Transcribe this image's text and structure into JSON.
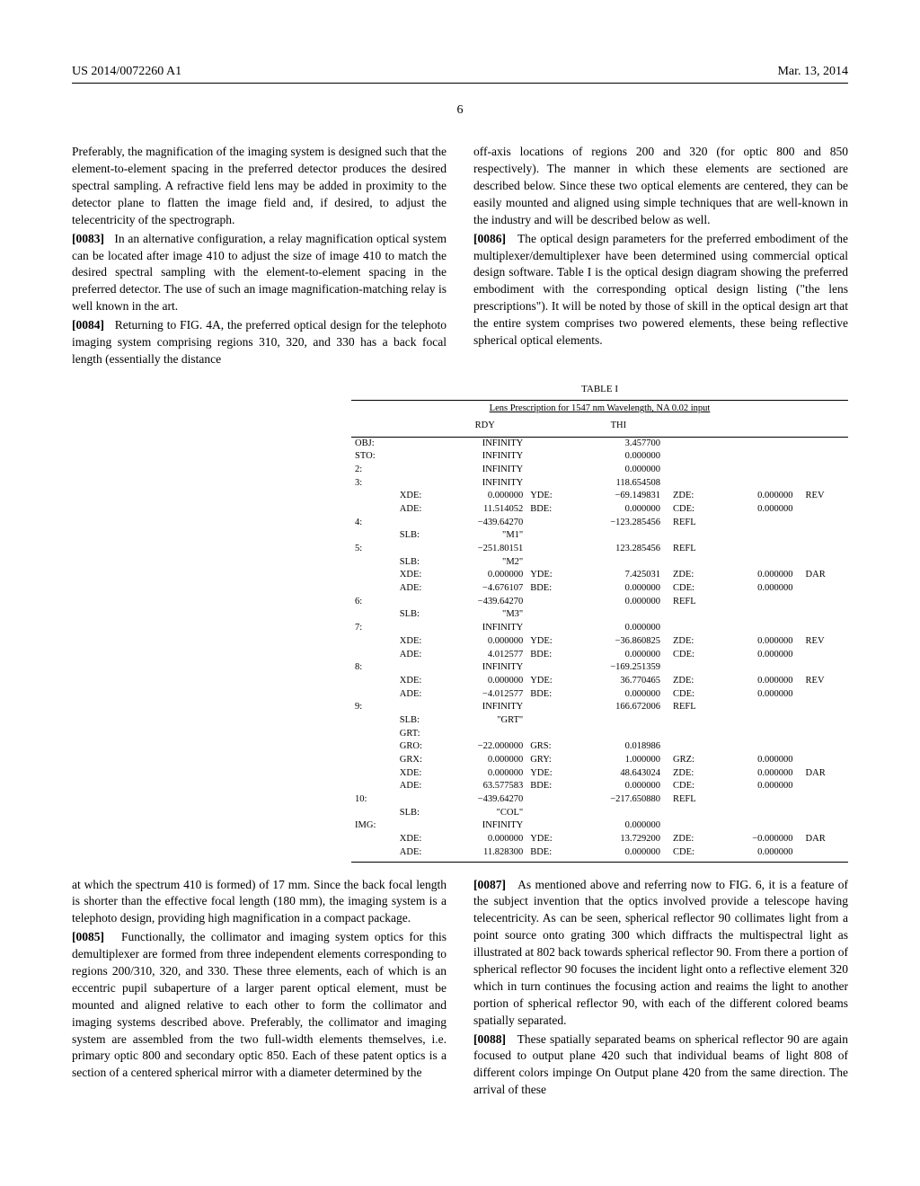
{
  "header": {
    "left": "US 2014/0072260 A1",
    "right": "Mar. 13, 2014"
  },
  "page_number": "6",
  "paragraphs": {
    "p_pre": "Preferably, the magnification of the imaging system is designed such that the element-to-element spacing in the preferred detector produces the desired spectral sampling. A refractive field lens may be added in proximity to the detector plane to flatten the image field and, if desired, to adjust the telecentricity of the spectrograph.",
    "p0083_num": "[0083]",
    "p0083": "In an alternative configuration, a relay magnification optical system can be located after image 410 to adjust the size of image 410 to match the desired spectral sampling with the element-to-element spacing in the preferred detector. The use of such an image magnification-matching relay is well known in the art.",
    "p0084_num": "[0084]",
    "p0084": "Returning to FIG. 4A, the preferred optical design for the telephoto imaging system comprising regions 310, 320, and 330 has a back focal length (essentially the distance",
    "p_col2_top": "off-axis locations of regions 200 and 320 (for optic 800 and 850 respectively). The manner in which these elements are sectioned are described below. Since these two optical elements are centered, they can be easily mounted and aligned using simple techniques that are well-known in the industry and will be described below as well.",
    "p0086_num": "[0086]",
    "p0086": "The optical design parameters for the preferred embodiment of the multiplexer/demultiplexer have been determined using commercial optical design software. Table I is the optical design diagram showing the preferred embodiment with the corresponding optical design listing (\"the lens prescriptions\"). It will be noted by those of skill in the optical design art that the entire system comprises two powered elements, these being reflective spherical optical elements.",
    "p_after_table1": "at which the spectrum 410 is formed) of 17 mm. Since the back focal length is shorter than the effective focal length (180 mm), the imaging system is a telephoto design, providing high magnification in a compact package.",
    "p0085_num": "[0085]",
    "p0085": "Functionally, the collimator and imaging system optics for this demultiplexer are formed from three independent elements corresponding to regions 200/310, 320, and 330. These three elements, each of which is an eccentric pupil subaperture of a larger parent optical element, must be mounted and aligned relative to each other to form the collimator and imaging systems described above. Preferably, the collimator and imaging system are assembled from the two full-width elements themselves, i.e. primary optic 800 and secondary optic 850. Each of these patent optics is a section of a centered spherical mirror with a diameter determined by the",
    "p0087_num": "[0087]",
    "p0087": "As mentioned above and referring now to FIG. 6, it is a feature of the subject invention that the optics involved provide a telescope having telecentricity. As can be seen, spherical reflector 90 collimates light from a point source onto grating 300 which diffracts the multispectral light as illustrated at 802 back towards spherical reflector 90. From there a portion of spherical reflector 90 focuses the incident light onto a reflective element 320 which in turn continues the focusing action and reaims the light to another portion of spherical reflector 90, with each of the different colored beams spatially separated.",
    "p0088_num": "[0088]",
    "p0088": "These spatially separated beams on spherical reflector 90 are again focused to output plane 420 such that individual beams of light 808 of different colors impinge On Output plane 420 from the same direction. The arrival of these"
  },
  "table": {
    "title": "TABLE I",
    "subtitle": "Lens Prescription for 1547 nm Wavelength, NA 0.02 input",
    "col_headers": {
      "rdy": "RDY",
      "thi": "THI"
    },
    "rows": [
      [
        "OBJ:",
        "",
        "INFINITY",
        "",
        "3.457700",
        "",
        "",
        "",
        ""
      ],
      [
        "STO:",
        "",
        "INFINITY",
        "",
        "0.000000",
        "",
        "",
        "",
        ""
      ],
      [
        "2:",
        "",
        "INFINITY",
        "",
        "0.000000",
        "",
        "",
        "",
        ""
      ],
      [
        "3:",
        "",
        "INFINITY",
        "",
        "118.654508",
        "",
        "",
        "",
        ""
      ],
      [
        "",
        "XDE:",
        "0.000000",
        "YDE:",
        "−69.149831",
        "ZDE:",
        "0.000000",
        "REV",
        ""
      ],
      [
        "",
        "ADE:",
        "11.514052",
        "BDE:",
        "0.000000",
        "CDE:",
        "0.000000",
        "",
        ""
      ],
      [
        "4:",
        "",
        "−439.64270",
        "",
        "−123.285456",
        "REFL",
        "",
        "",
        ""
      ],
      [
        "",
        "SLB:",
        "\"M1\"",
        "",
        "",
        "",
        "",
        "",
        ""
      ],
      [
        "5:",
        "",
        "−251.80151",
        "",
        "123.285456",
        "REFL",
        "",
        "",
        ""
      ],
      [
        "",
        "SLB:",
        "\"M2\"",
        "",
        "",
        "",
        "",
        "",
        ""
      ],
      [
        "",
        "XDE:",
        "0.000000",
        "YDE:",
        "7.425031",
        "ZDE:",
        "0.000000",
        "DAR",
        ""
      ],
      [
        "",
        "ADE:",
        "−4.676107",
        "BDE:",
        "0.000000",
        "CDE:",
        "0.000000",
        "",
        ""
      ],
      [
        "6:",
        "",
        "−439.64270",
        "",
        "0.000000",
        "REFL",
        "",
        "",
        ""
      ],
      [
        "",
        "SLB:",
        "\"M3\"",
        "",
        "",
        "",
        "",
        "",
        ""
      ],
      [
        "7:",
        "",
        "INFINITY",
        "",
        "0.000000",
        "",
        "",
        "",
        ""
      ],
      [
        "",
        "XDE:",
        "0.000000",
        "YDE:",
        "−36.860825",
        "ZDE:",
        "0.000000",
        "REV",
        ""
      ],
      [
        "",
        "ADE:",
        "4.012577",
        "BDE:",
        "0.000000",
        "CDE:",
        "0.000000",
        "",
        ""
      ],
      [
        "8:",
        "",
        "INFINITY",
        "",
        "−169.251359",
        "",
        "",
        "",
        ""
      ],
      [
        "",
        "XDE:",
        "0.000000",
        "YDE:",
        "36.770465",
        "ZDE:",
        "0.000000",
        "REV",
        ""
      ],
      [
        "",
        "ADE:",
        "−4.012577",
        "BDE:",
        "0.000000",
        "CDE:",
        "0.000000",
        "",
        ""
      ],
      [
        "9:",
        "",
        "INFINITY",
        "",
        "166.672006",
        "REFL",
        "",
        "",
        ""
      ],
      [
        "",
        "SLB:",
        "\"GRT\"",
        "",
        "",
        "",
        "",
        "",
        ""
      ],
      [
        "",
        "GRT:",
        "",
        "",
        "",
        "",
        "",
        "",
        ""
      ],
      [
        "",
        "GRO:",
        "−22.000000",
        "GRS:",
        "0.018986",
        "",
        "",
        "",
        ""
      ],
      [
        "",
        "GRX:",
        "0.000000",
        "GRY:",
        "1.000000",
        "GRZ:",
        "0.000000",
        "",
        ""
      ],
      [
        "",
        "XDE:",
        "0.000000",
        "YDE:",
        "48.643024",
        "ZDE:",
        "0.000000",
        "DAR",
        ""
      ],
      [
        "",
        "ADE:",
        "63.577583",
        "BDE:",
        "0.000000",
        "CDE:",
        "0.000000",
        "",
        ""
      ],
      [
        "10:",
        "",
        "−439.64270",
        "",
        "−217.650880",
        "REFL",
        "",
        "",
        ""
      ],
      [
        "",
        "SLB:",
        "\"COL\"",
        "",
        "",
        "",
        "",
        "",
        ""
      ],
      [
        "IMG:",
        "",
        "INFINITY",
        "",
        "0.000000",
        "",
        "",
        "",
        ""
      ],
      [
        "",
        "XDE:",
        "0.000000",
        "YDE:",
        "13.729200",
        "ZDE:",
        "−0.000000",
        "DAR",
        ""
      ],
      [
        "",
        "ADE:",
        "11.828300",
        "BDE:",
        "0.000000",
        "CDE:",
        "0.000000",
        "",
        ""
      ]
    ]
  }
}
